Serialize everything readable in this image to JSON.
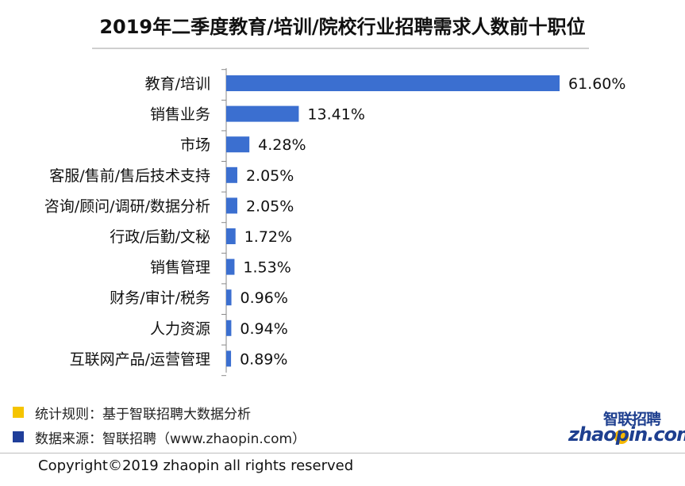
{
  "title": "2019年二季度教育/培训/院校行业招聘需求人数前十职位",
  "colors": {
    "bar": "#3b6fd0",
    "axis": "#8a8a8a",
    "legend_rule": "#f5c400",
    "legend_source": "#1f3e9a"
  },
  "chart_data": {
    "type": "bar",
    "orientation": "horizontal",
    "title": "2019年二季度教育/培训/院校行业招聘需求人数前十职位",
    "categories": [
      "教育/培训",
      "销售业务",
      "市场",
      "客服/售前/售后技术支持",
      "咨询/顾问/调研/数据分析",
      "行政/后勤/文秘",
      "销售管理",
      "财务/审计/税务",
      "人力资源",
      "互联网产品/运营管理"
    ],
    "values": [
      61.6,
      13.41,
      4.28,
      2.05,
      2.05,
      1.72,
      1.53,
      0.96,
      0.94,
      0.89
    ],
    "value_labels": [
      "61.60%",
      "13.41%",
      "4.28%",
      "2.05%",
      "2.05%",
      "1.72%",
      "1.53%",
      "0.96%",
      "0.94%",
      "0.89%"
    ],
    "unit": "%",
    "grid": false,
    "xlim": [
      0,
      61.6
    ]
  },
  "legend": [
    {
      "label": "统计规则：基于智联招聘大数据分析",
      "color": "#f5c400"
    },
    {
      "label": "数据来源：智联招聘（www.zhaopin.com）",
      "color": "#1f3e9a"
    }
  ],
  "logo": {
    "cn": "智联招聘",
    "en": "zhaopin.com",
    "icon": "zhaopin-logo-icon"
  },
  "footer": {
    "copyright": "Copyright©2019 zhaopin all rights reserved"
  }
}
